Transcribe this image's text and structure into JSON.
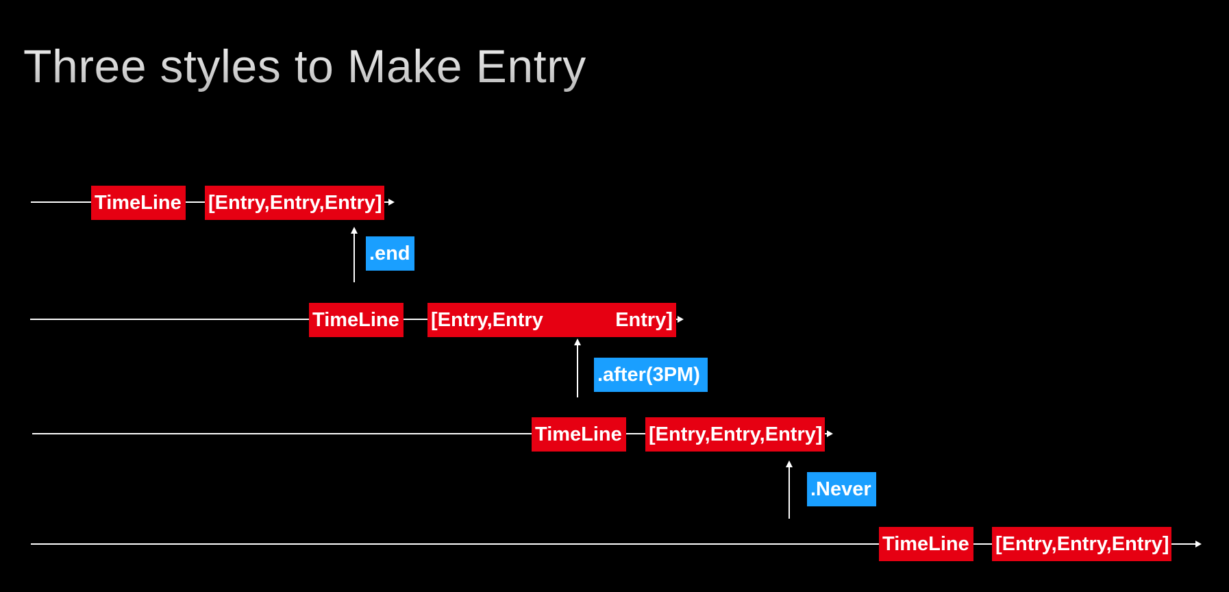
{
  "title": "Three styles to Make Entry",
  "colors": {
    "timeline_box": "#e60012",
    "policy_box": "#1a9fff",
    "line": "#ffffff",
    "background": "#000000"
  },
  "rows": [
    {
      "timeline": "TimeLine",
      "entries": "[Entry,Entry,Entry]"
    },
    {
      "timeline": "TimeLine",
      "entries_left": "[Entry,Entry",
      "entries_right": "Entry]"
    },
    {
      "timeline": "TimeLine",
      "entries": "[Entry,Entry,Entry]"
    },
    {
      "timeline": "TimeLine",
      "entries": "[Entry,Entry,Entry]"
    }
  ],
  "policies": [
    ".end",
    ".after(3PM)",
    ".Never"
  ]
}
